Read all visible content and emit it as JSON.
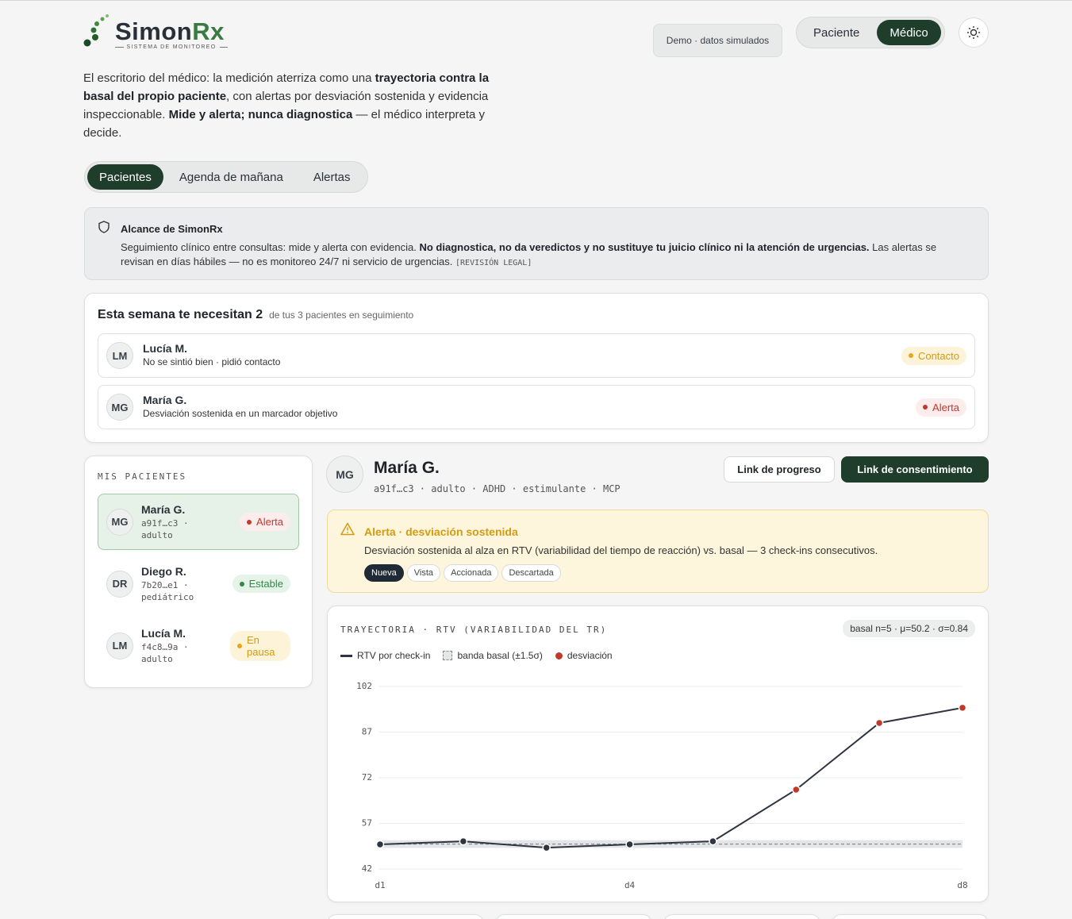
{
  "header": {
    "brand": [
      "Simon",
      "Rx"
    ],
    "tagline": "SISTEMA DE MONITOREO",
    "demo": "Demo · datos simulados",
    "roles": [
      "Paciente",
      "Médico"
    ],
    "active_role": 1
  },
  "intro": [
    {
      "text": "El escritorio del médico: la medición aterriza como una "
    },
    {
      "text": "trayectoria contra la basal del propio paciente",
      "bold": true
    },
    {
      "text": ", con alertas por desviación sostenida y evidencia inspeccionable. "
    },
    {
      "text": "Mide y alerta; nunca diagnostica",
      "bold": true
    },
    {
      "text": " — el médico interpreta y decide."
    }
  ],
  "tabs": {
    "items": [
      "Pacientes",
      "Agenda de mañana",
      "Alertas"
    ],
    "active": 0
  },
  "scope": {
    "title": "Alcance de SimonRx",
    "text": [
      {
        "text": "Seguimiento clínico entre consultas: mide y alerta con evidencia. "
      },
      {
        "text": "No diagnostica, no da veredictos y no sustituye tu juicio clínico ni la atención de urgencias.",
        "bold": true
      },
      {
        "text": " Las alertas se revisan en días hábiles — no es monitoreo 24/7 ni servicio de urgencias. "
      }
    ],
    "tag": "[REVISIÓN LEGAL]"
  },
  "needs": {
    "title": "Esta semana te necesitan 2",
    "subtitle": "de tus 3 pacientes en seguimiento",
    "items": [
      {
        "initials": "LM",
        "name": "Lucía M.",
        "note": "No se sintió bien · pidió contacto",
        "status": "Contacto",
        "tone": "contact"
      },
      {
        "initials": "MG",
        "name": "María G.",
        "note": "Desviación sostenida en un marcador objetivo",
        "status": "Alerta",
        "tone": "alert"
      }
    ]
  },
  "patients": {
    "heading": "MIS PACIENTES",
    "selected": 0,
    "items": [
      {
        "initials": "MG",
        "name": "María G.",
        "meta": "a91f…c3 · adulto",
        "status": "Alerta",
        "tone": "alert"
      },
      {
        "initials": "DR",
        "name": "Diego R.",
        "meta": "7b20…e1 · pediátrico",
        "status": "Estable",
        "tone": "stable"
      },
      {
        "initials": "LM",
        "name": "Lucía M.",
        "meta": "f4c8…9a · adulto",
        "status": "En pausa",
        "tone": "pause"
      }
    ]
  },
  "detail": {
    "initials": "MG",
    "name": "María G.",
    "meta": "a91f…c3 · adulto · ADHD · estimulante · MCP",
    "buttons": [
      "Link de progreso",
      "Link de consentimiento"
    ]
  },
  "alert": {
    "title": "Alerta · desviación sostenida",
    "text": "Desviación sostenida al alza en RTV (variabilidad del tiempo de reacción) vs. basal — 3 check-ins consecutivos.",
    "states": [
      "Nueva",
      "Vista",
      "Accionada",
      "Descartada"
    ],
    "active_state": 0
  },
  "chart_data": {
    "type": "line",
    "title": "TRAYECTORIA · RTV (VARIABILIDAD DEL TR)",
    "badge": "basal n=5 · μ=50.2 · σ=0.84",
    "categories": [
      "d1",
      null,
      null,
      "d4",
      null,
      null,
      null,
      "d8"
    ],
    "series": [
      {
        "name": "RTV por check-in",
        "color": "#2e3440",
        "values": [
          50.1,
          51.1,
          49.0,
          50.1,
          51.1,
          68.1,
          90.0,
          95.0
        ]
      },
      {
        "name": "desviación",
        "color": "#c0392b",
        "markers_only": true,
        "values": [
          null,
          null,
          null,
          null,
          null,
          68.1,
          90.0,
          95.0
        ]
      }
    ],
    "band": {
      "name": "banda basal (±1.5σ)",
      "mean": 50.2,
      "sigma": 0.84,
      "k": 1.5
    },
    "ylim": [
      42,
      102
    ],
    "yticks": [
      42,
      57,
      72,
      87,
      102
    ],
    "grid": true
  }
}
